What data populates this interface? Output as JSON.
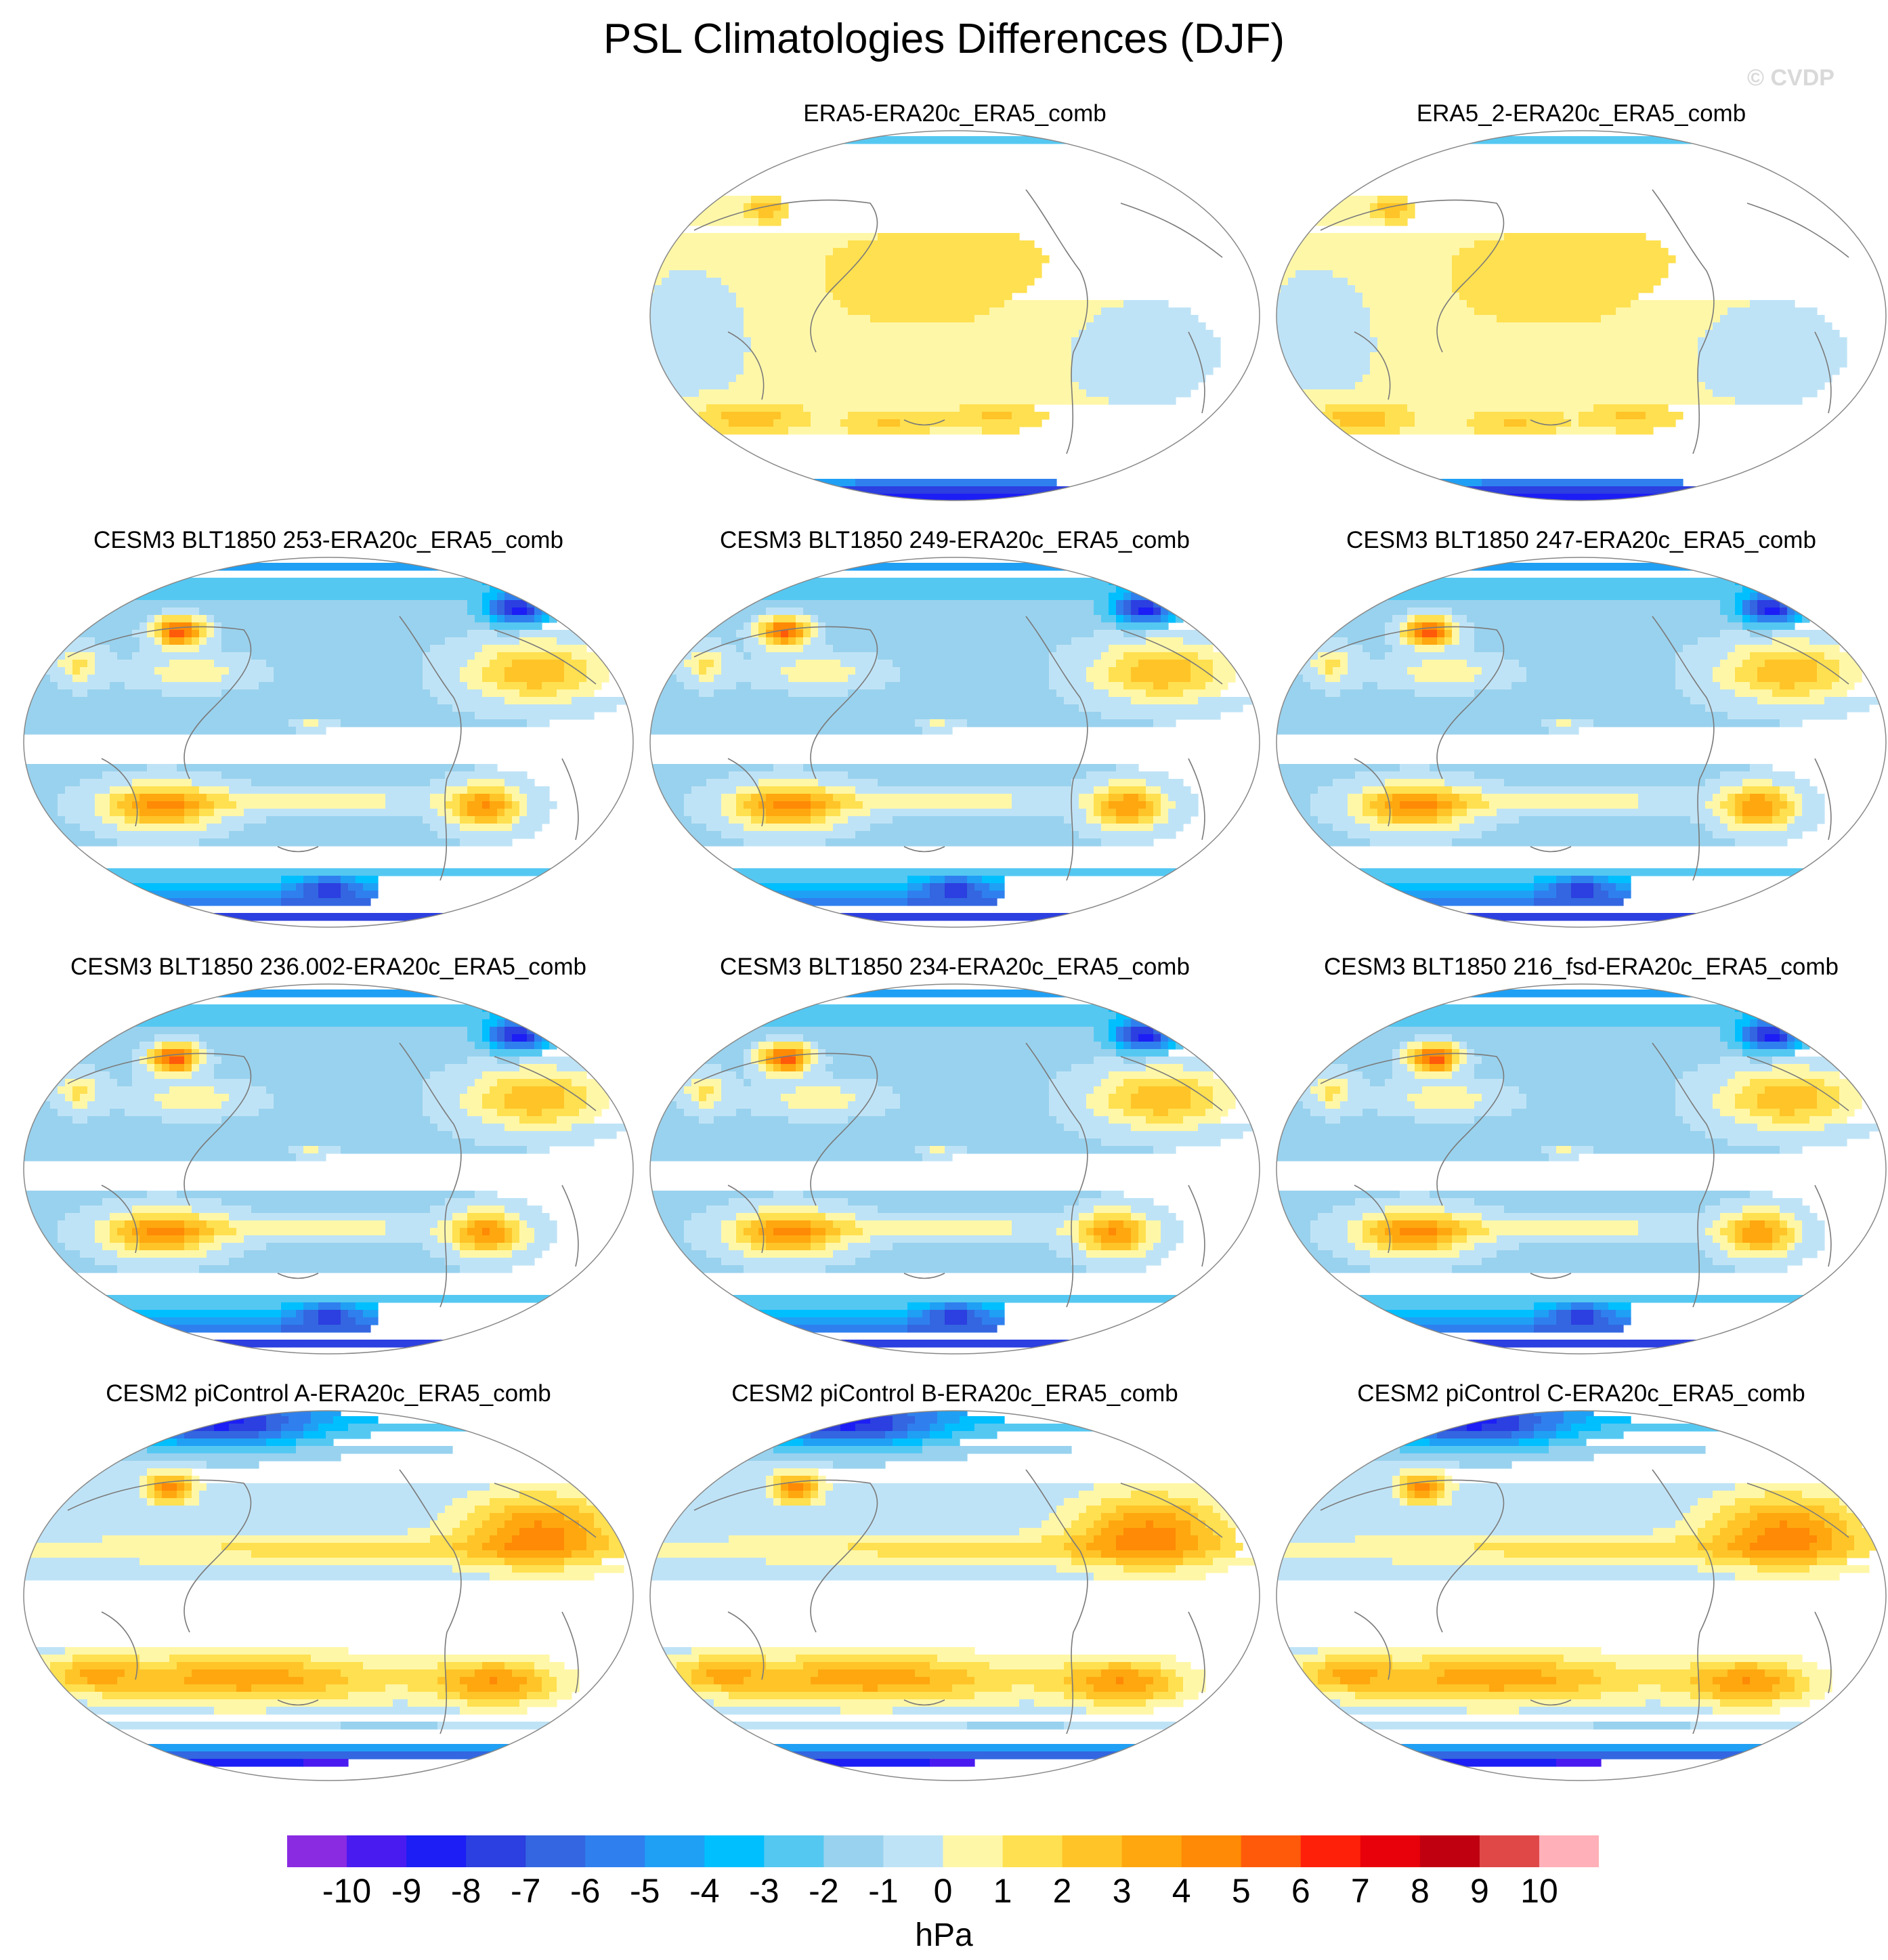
{
  "title": "PSL Climatologies Differences (DJF)",
  "watermark": "© CVDP",
  "panels": [
    {
      "label": "ERA5-ERA20c_ERA5_comb",
      "row": 0,
      "col": 1,
      "style": "reanalysis",
      "seed": 1
    },
    {
      "label": "ERA5_2-ERA20c_ERA5_comb",
      "row": 0,
      "col": 2,
      "style": "reanalysis",
      "seed": 2
    },
    {
      "label": "CESM3 BLT1850 253-ERA20c_ERA5_comb",
      "row": 1,
      "col": 0,
      "style": "cesm3",
      "seed": 3
    },
    {
      "label": "CESM3 BLT1850 249-ERA20c_ERA5_comb",
      "row": 1,
      "col": 1,
      "style": "cesm3",
      "seed": 4
    },
    {
      "label": "CESM3 BLT1850 247-ERA20c_ERA5_comb",
      "row": 1,
      "col": 2,
      "style": "cesm3",
      "seed": 5
    },
    {
      "label": "CESM3 BLT1850 236.002-ERA20c_ERA5_comb",
      "row": 2,
      "col": 0,
      "style": "cesm3",
      "seed": 6
    },
    {
      "label": "CESM3 BLT1850 234-ERA20c_ERA5_comb",
      "row": 2,
      "col": 1,
      "style": "cesm3",
      "seed": 7
    },
    {
      "label": "CESM3 BLT1850 216_fsd-ERA20c_ERA5_comb",
      "row": 2,
      "col": 2,
      "style": "cesm3",
      "seed": 8
    },
    {
      "label": "CESM2 piControl A-ERA20c_ERA5_comb",
      "row": 3,
      "col": 0,
      "style": "cesm2",
      "seed": 9
    },
    {
      "label": "CESM2 piControl B-ERA20c_ERA5_comb",
      "row": 3,
      "col": 1,
      "style": "cesm2",
      "seed": 10
    },
    {
      "label": "CESM2 piControl C-ERA20c_ERA5_comb",
      "row": 3,
      "col": 2,
      "style": "cesm2",
      "seed": 11
    }
  ],
  "colorbar": {
    "unit": "hPa",
    "ticks": [
      "-10",
      "-9",
      "-8",
      "-7",
      "-6",
      "-5",
      "-4",
      "-3",
      "-2",
      "-1",
      "0",
      "1",
      "2",
      "3",
      "4",
      "5",
      "6",
      "7",
      "8",
      "9",
      "10"
    ],
    "colors": [
      "#8a2be2",
      "#4a1bf0",
      "#1c1ef5",
      "#2c3fe0",
      "#3366e0",
      "#2f80ee",
      "#1fa0f5",
      "#00bfff",
      "#55c8f2",
      "#99d2ee",
      "#bfe3f6",
      "#fff7a8",
      "#ffe050",
      "#ffc428",
      "#ffa70f",
      "#ff8a05",
      "#ff5a0a",
      "#ff200a",
      "#e8000a",
      "#c00010",
      "#e04848",
      "#ffb0b8"
    ]
  }
}
